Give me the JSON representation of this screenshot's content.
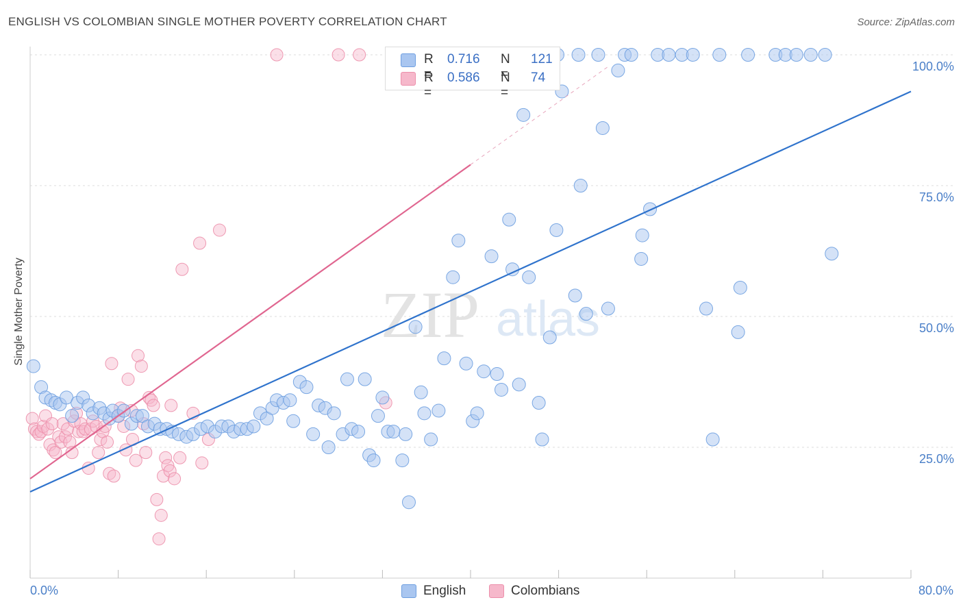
{
  "title": "ENGLISH VS COLOMBIAN SINGLE MOTHER POVERTY CORRELATION CHART",
  "source": "Source: ZipAtlas.com",
  "colors": {
    "english_fill": "#a9c6f0",
    "english_stroke": "#6d9ee0",
    "english_line": "#2f73cc",
    "colombian_fill": "#f6b8cb",
    "colombian_stroke": "#ec8eaa",
    "colombian_line": "#e06690"
  },
  "legend": {
    "english": {
      "r_label": "R =",
      "r_value": "0.716",
      "n_label": "N =",
      "n_value": "121"
    },
    "colombian": {
      "r_label": "R =",
      "r_value": "0.586",
      "n_label": "N =",
      "n_value": "74"
    }
  },
  "series_names": [
    "English",
    "Colombians"
  ],
  "chart_data": {
    "type": "scatter",
    "title": "ENGLISH VS COLOMBIAN SINGLE MOTHER POVERTY CORRELATION CHART",
    "xlabel": "",
    "ylabel": "Single Mother Poverty",
    "xlim": [
      0,
      80
    ],
    "ylim": [
      0,
      103
    ],
    "x_tick_labels": [
      "0.0%",
      "80.0%"
    ],
    "y_ticks": [
      25,
      50,
      75,
      100
    ],
    "y_tick_labels": [
      "25.0%",
      "50.0%",
      "75.0%",
      "100.0%"
    ],
    "grid": true,
    "legend_placement": "top-center",
    "series": [
      {
        "name": "English",
        "trend": {
          "x0": 0,
          "y0": 16.5,
          "x1": 80,
          "y1": 93.0
        },
        "points": [
          [
            0.3,
            40.5
          ],
          [
            1,
            36.5
          ],
          [
            1.4,
            34.5
          ],
          [
            1.9,
            34.0
          ],
          [
            2.3,
            33.5
          ],
          [
            2.7,
            33.2
          ],
          [
            3.3,
            34.5
          ],
          [
            3.8,
            31.0
          ],
          [
            4.3,
            33.5
          ],
          [
            4.8,
            34.5
          ],
          [
            5.3,
            33.0
          ],
          [
            5.7,
            31.5
          ],
          [
            6.3,
            32.5
          ],
          [
            6.7,
            31.5
          ],
          [
            7.2,
            30.5
          ],
          [
            7.5,
            32.0
          ],
          [
            8.0,
            31.0
          ],
          [
            8.5,
            32.0
          ],
          [
            9.2,
            29.5
          ],
          [
            9.7,
            31.0
          ],
          [
            10.2,
            31.0
          ],
          [
            10.7,
            29.0
          ],
          [
            11.3,
            29.5
          ],
          [
            11.8,
            28.5
          ],
          [
            12.4,
            28.5
          ],
          [
            12.9,
            28.0
          ],
          [
            13.5,
            27.5
          ],
          [
            14.2,
            27.0
          ],
          [
            14.8,
            27.5
          ],
          [
            15.5,
            28.5
          ],
          [
            16.1,
            29.0
          ],
          [
            16.8,
            28.0
          ],
          [
            17.4,
            29.0
          ],
          [
            18.0,
            29.0
          ],
          [
            18.5,
            28.0
          ],
          [
            19.1,
            28.5
          ],
          [
            19.7,
            28.5
          ],
          [
            20.3,
            29.0
          ],
          [
            20.9,
            31.5
          ],
          [
            21.5,
            30.5
          ],
          [
            22.0,
            32.5
          ],
          [
            22.4,
            34.0
          ],
          [
            23.0,
            33.5
          ],
          [
            23.6,
            34.0
          ],
          [
            23.9,
            30.0
          ],
          [
            24.5,
            37.5
          ],
          [
            25.1,
            36.5
          ],
          [
            25.7,
            27.5
          ],
          [
            26.2,
            33.0
          ],
          [
            26.8,
            32.5
          ],
          [
            27.1,
            25.0
          ],
          [
            27.6,
            31.5
          ],
          [
            28.4,
            27.5
          ],
          [
            28.8,
            38.0
          ],
          [
            29.2,
            28.5
          ],
          [
            29.8,
            28.0
          ],
          [
            30.4,
            38.0
          ],
          [
            30.8,
            23.5
          ],
          [
            31.2,
            22.5
          ],
          [
            31.6,
            31.0
          ],
          [
            32.0,
            34.5
          ],
          [
            32.5,
            28.0
          ],
          [
            33.0,
            28.0
          ],
          [
            33.8,
            22.5
          ],
          [
            34.1,
            27.5
          ],
          [
            34.4,
            14.5
          ],
          [
            35.0,
            48.0
          ],
          [
            35.5,
            35.5
          ],
          [
            35.8,
            31.5
          ],
          [
            36.4,
            26.5
          ],
          [
            37.1,
            32.0
          ],
          [
            37.6,
            42.0
          ],
          [
            38.4,
            57.5
          ],
          [
            38.9,
            64.5
          ],
          [
            39.6,
            41.0
          ],
          [
            40.2,
            30.0
          ],
          [
            40.6,
            31.5
          ],
          [
            41.2,
            39.5
          ],
          [
            41.9,
            61.5
          ],
          [
            42.4,
            39.0
          ],
          [
            42.8,
            36.0
          ],
          [
            43.5,
            68.5
          ],
          [
            43.8,
            59.0
          ],
          [
            44.4,
            37.0
          ],
          [
            44.8,
            88.5
          ],
          [
            45.3,
            57.5
          ],
          [
            46.2,
            33.5
          ],
          [
            46.5,
            26.5
          ],
          [
            47.2,
            46.0
          ],
          [
            47.8,
            66.5
          ],
          [
            47.9,
            100.0
          ],
          [
            48.3,
            93.0
          ],
          [
            49.5,
            54.0
          ],
          [
            49.8,
            100.0
          ],
          [
            50.0,
            75.0
          ],
          [
            50.5,
            50.5
          ],
          [
            51.6,
            100.0
          ],
          [
            52.0,
            86.0
          ],
          [
            52.5,
            51.5
          ],
          [
            53.4,
            97.0
          ],
          [
            54.0,
            100.0
          ],
          [
            54.6,
            100.0
          ],
          [
            55.5,
            61.0
          ],
          [
            55.6,
            65.5
          ],
          [
            56.3,
            70.5
          ],
          [
            57.0,
            100.0
          ],
          [
            58.0,
            100.0
          ],
          [
            59.2,
            100.0
          ],
          [
            60.2,
            100.0
          ],
          [
            61.4,
            51.5
          ],
          [
            62.0,
            26.5
          ],
          [
            62.6,
            100.0
          ],
          [
            64.3,
            47.0
          ],
          [
            64.5,
            55.5
          ],
          [
            65.2,
            100.0
          ],
          [
            67.7,
            100.0
          ],
          [
            68.6,
            100.0
          ],
          [
            69.6,
            100.0
          ],
          [
            70.9,
            100.0
          ],
          [
            72.2,
            100.0
          ],
          [
            72.8,
            62.0
          ]
        ]
      },
      {
        "name": "Colombians",
        "trend": {
          "x0": 0,
          "y0": 19.0,
          "x1": 40,
          "y1": 79.0
        },
        "trend_dash": {
          "x0": 40,
          "y0": 79.0,
          "x1": 52.5,
          "y1": 97.75
        },
        "points": [
          [
            0.2,
            30.5
          ],
          [
            0.4,
            28.5
          ],
          [
            0.6,
            28.0
          ],
          [
            0.8,
            27.5
          ],
          [
            1.0,
            28.0
          ],
          [
            1.2,
            29.0
          ],
          [
            1.4,
            31.0
          ],
          [
            1.6,
            28.5
          ],
          [
            1.8,
            25.5
          ],
          [
            2.0,
            29.5
          ],
          [
            2.1,
            24.5
          ],
          [
            2.3,
            24.0
          ],
          [
            2.6,
            27.0
          ],
          [
            2.8,
            26.0
          ],
          [
            3.0,
            29.5
          ],
          [
            3.2,
            27.0
          ],
          [
            3.4,
            28.5
          ],
          [
            3.6,
            26.0
          ],
          [
            3.8,
            24.0
          ],
          [
            4.0,
            30.0
          ],
          [
            4.2,
            31.5
          ],
          [
            4.4,
            28.0
          ],
          [
            4.6,
            29.5
          ],
          [
            4.8,
            28.0
          ],
          [
            5.0,
            28.5
          ],
          [
            5.3,
            21.0
          ],
          [
            5.5,
            28.5
          ],
          [
            5.7,
            30.0
          ],
          [
            6.0,
            29.0
          ],
          [
            6.2,
            24.0
          ],
          [
            6.4,
            26.5
          ],
          [
            6.6,
            28.0
          ],
          [
            6.8,
            29.0
          ],
          [
            7.0,
            26.0
          ],
          [
            7.2,
            20.0
          ],
          [
            7.4,
            41.0
          ],
          [
            7.6,
            19.5
          ],
          [
            8.0,
            31.0
          ],
          [
            8.2,
            32.5
          ],
          [
            8.5,
            29.0
          ],
          [
            8.7,
            24.5
          ],
          [
            8.9,
            38.0
          ],
          [
            9.2,
            32.0
          ],
          [
            9.3,
            26.5
          ],
          [
            9.6,
            22.5
          ],
          [
            9.8,
            42.5
          ],
          [
            10.1,
            40.5
          ],
          [
            10.3,
            29.5
          ],
          [
            10.5,
            24.0
          ],
          [
            10.8,
            34.5
          ],
          [
            11.0,
            34.0
          ],
          [
            11.2,
            33.0
          ],
          [
            11.5,
            15.0
          ],
          [
            11.7,
            7.5
          ],
          [
            11.9,
            12.0
          ],
          [
            12.1,
            19.5
          ],
          [
            12.3,
            23.0
          ],
          [
            12.5,
            21.5
          ],
          [
            12.7,
            20.5
          ],
          [
            12.8,
            33.0
          ],
          [
            13.1,
            19.0
          ],
          [
            13.6,
            23.0
          ],
          [
            13.8,
            59.0
          ],
          [
            14.8,
            31.5
          ],
          [
            15.4,
            64.0
          ],
          [
            15.6,
            22.0
          ],
          [
            16.2,
            26.5
          ],
          [
            17.2,
            66.5
          ],
          [
            22.4,
            100.0
          ],
          [
            28.0,
            100.0
          ],
          [
            29.9,
            100.0
          ],
          [
            32.3,
            33.5
          ],
          [
            33.4,
            95.0
          ],
          [
            33.8,
            100.0
          ]
        ]
      }
    ]
  }
}
